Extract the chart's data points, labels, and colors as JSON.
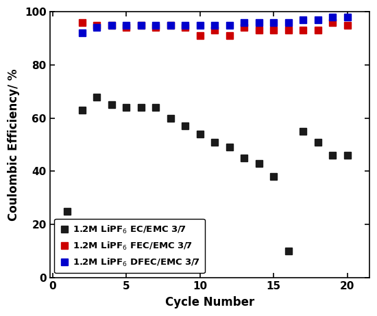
{
  "ec_emc_x": [
    1,
    2,
    3,
    4,
    5,
    6,
    7,
    8,
    9,
    10,
    11,
    12,
    13,
    14,
    15,
    16,
    17,
    18,
    19,
    20
  ],
  "ec_emc_y": [
    25,
    63,
    68,
    65,
    64,
    64,
    64,
    60,
    57,
    54,
    51,
    49,
    45,
    43,
    38,
    10,
    55,
    51,
    46,
    46
  ],
  "fec_emc_x": [
    2,
    3,
    4,
    5,
    6,
    7,
    8,
    9,
    10,
    11,
    12,
    13,
    14,
    15,
    16,
    17,
    18,
    19,
    20
  ],
  "fec_emc_y": [
    96,
    95,
    95,
    94,
    95,
    94,
    95,
    94,
    91,
    93,
    91,
    94,
    93,
    93,
    93,
    93,
    93,
    96,
    95
  ],
  "dfec_emc_x": [
    2,
    3,
    4,
    5,
    6,
    7,
    8,
    9,
    10,
    11,
    12,
    13,
    14,
    15,
    16,
    17,
    18,
    19,
    20
  ],
  "dfec_emc_y": [
    92,
    94,
    95,
    95,
    95,
    95,
    95,
    95,
    95,
    95,
    95,
    96,
    96,
    96,
    96,
    97,
    97,
    98,
    98
  ],
  "ec_color": "#1a1a1a",
  "fec_color": "#cc0000",
  "dfec_color": "#0000cc",
  "xlabel": "Cycle Number",
  "ylabel": "Coulombic Efficiency/ %",
  "xlim": [
    -0.2,
    21.5
  ],
  "ylim": [
    0,
    100
  ],
  "yticks": [
    0,
    20,
    40,
    60,
    80,
    100
  ],
  "xticks": [
    0,
    5,
    10,
    15,
    20
  ],
  "legend_ec": "1.2M LiPF$_6$ EC/EMC 3/7",
  "legend_fec": "1.2M LiPF$_6$ FEC/EMC 3/7",
  "legend_dfec": "1.2M LiPF$_6$ DFEC/EMC 3/7",
  "marker_size": 6.5,
  "label_fontsize": 12,
  "tick_fontsize": 11,
  "legend_fontsize": 9.5
}
